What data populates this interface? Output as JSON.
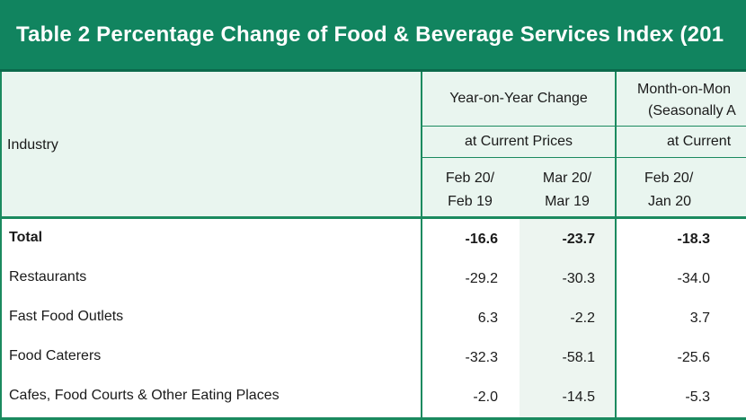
{
  "title": "Table 2   Percentage Change of Food & Beverage Services Index (201",
  "header": {
    "industry": "Industry",
    "yoy": "Year-on-Year Change",
    "mom_line1": "Month-on-Mon",
    "mom_line2": "(Seasonally A",
    "yoy_prices": "at Current Prices",
    "mom_prices": "at Current",
    "periods": [
      {
        "l1": "Feb 20/",
        "l2": "Feb 19"
      },
      {
        "l1": "Mar 20/",
        "l2": "Mar 19"
      },
      {
        "l1": "Feb 20/",
        "l2": "Jan 20"
      }
    ]
  },
  "chart_data": {
    "type": "table",
    "columns": [
      "Feb 20/ Feb 19",
      "Mar 20/ Mar 19",
      "Feb 20/ Jan 20"
    ],
    "rows": [
      {
        "label": "Total",
        "values": [
          "-16.6",
          "-23.7",
          "-18.3"
        ],
        "bold": true
      },
      {
        "label": "Restaurants",
        "values": [
          "-29.2",
          "-30.3",
          "-34.0"
        ]
      },
      {
        "label": "Fast Food Outlets",
        "values": [
          "6.3",
          "-2.2",
          "3.7"
        ]
      },
      {
        "label": "Food Caterers",
        "values": [
          "-32.3",
          "-58.1",
          "-25.6"
        ]
      },
      {
        "label": "Cafes, Food Courts & Other Eating Places",
        "values": [
          "-2.0",
          "-14.5",
          "-5.3"
        ]
      }
    ]
  }
}
